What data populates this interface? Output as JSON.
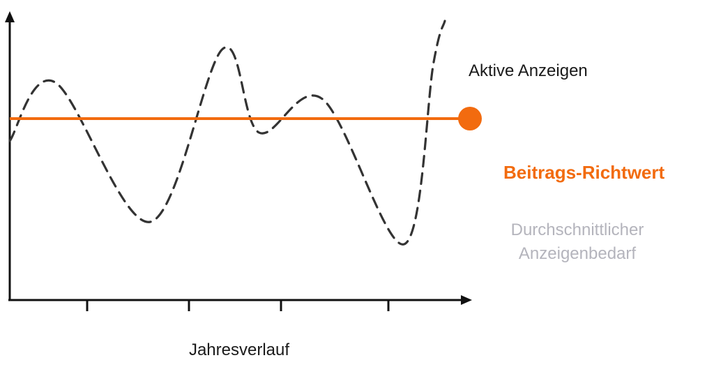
{
  "chart_data": {
    "type": "line",
    "xlabel": "Jahresverlauf",
    "ylabel": "",
    "x_ticks": 4,
    "series": [
      {
        "name": "Aktive Anzeigen",
        "style": "dashed",
        "color": "#333333",
        "x": [
          0,
          0.1,
          0.31,
          0.47,
          0.55,
          0.69,
          0.87,
          0.935,
          0.96
        ],
        "y": [
          0.57,
          0.78,
          0.28,
          0.9,
          0.6,
          0.72,
          0.2,
          0.85,
          1.0
        ]
      }
    ],
    "reference_line": {
      "label": "Beitrags-Richtwert",
      "y": 0.65,
      "color": "#f26b0f"
    },
    "annotation": {
      "lines": [
        "Durchschnittlicher",
        "Anzeigenbedarf"
      ],
      "color": "#b4b4bc"
    }
  }
}
